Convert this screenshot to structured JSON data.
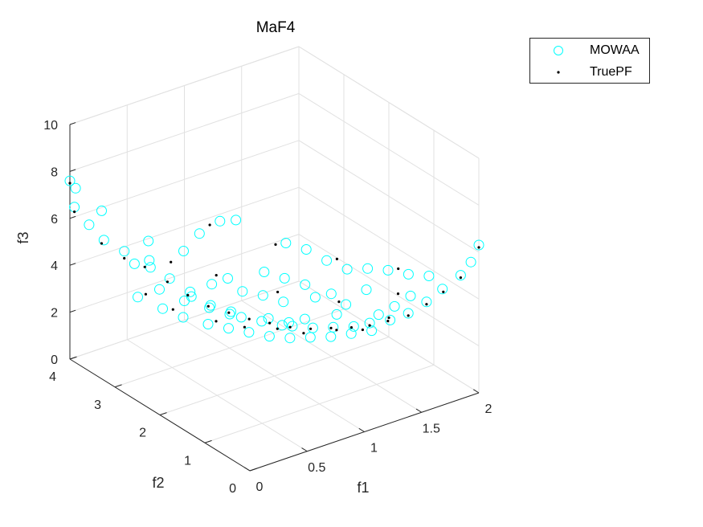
{
  "chart_data": {
    "type": "scatter",
    "title": "MaF4",
    "xlabel": "f1",
    "ylabel": "f2",
    "zlabel": "f3",
    "xlim": [
      0,
      2
    ],
    "ylim": [
      0,
      4
    ],
    "zlim": [
      0,
      10
    ],
    "x_ticks": [
      "0",
      "0.5",
      "1",
      "1.5",
      "2"
    ],
    "y_ticks": [
      "0",
      "1",
      "2",
      "3",
      "4"
    ],
    "z_ticks": [
      "0",
      "2",
      "4",
      "6",
      "8",
      "10"
    ],
    "grid": true,
    "legend_placement": "outside top-right",
    "colors": {
      "mowaa": "#00ffff",
      "truepf": "#000000",
      "axis": "#262626",
      "grid": "#e1e1e1"
    },
    "series": [
      {
        "name": "MOWAA",
        "marker": "circle",
        "points": [
          [
            0.0,
            4.0,
            7.6
          ],
          [
            0.05,
            4.0,
            7.2
          ],
          [
            0.0,
            3.9,
            6.6
          ],
          [
            0.12,
            3.6,
            6.6
          ],
          [
            0.05,
            3.7,
            6.0
          ],
          [
            0.1,
            3.5,
            5.5
          ],
          [
            0.2,
            3.3,
            5.1
          ],
          [
            0.3,
            3.0,
            4.9
          ],
          [
            0.35,
            3.1,
            4.4
          ],
          [
            0.4,
            2.8,
            4.2
          ],
          [
            0.25,
            3.2,
            4.6
          ],
          [
            0.5,
            2.6,
            3.7
          ],
          [
            0.55,
            2.7,
            3.3
          ],
          [
            0.6,
            2.4,
            3.2
          ],
          [
            0.7,
            2.2,
            3.0
          ],
          [
            0.75,
            2.1,
            2.8
          ],
          [
            0.85,
            1.9,
            2.7
          ],
          [
            0.95,
            1.7,
            2.6
          ],
          [
            1.0,
            1.6,
            2.6
          ],
          [
            1.1,
            1.4,
            2.6
          ],
          [
            1.2,
            1.2,
            2.7
          ],
          [
            1.3,
            1.0,
            2.8
          ],
          [
            1.4,
            0.9,
            2.9
          ],
          [
            1.5,
            0.7,
            3.1
          ],
          [
            1.6,
            0.55,
            3.4
          ],
          [
            1.7,
            0.4,
            3.9
          ],
          [
            1.8,
            0.3,
            4.4
          ],
          [
            1.9,
            0.15,
            5.0
          ],
          [
            1.95,
            0.05,
            5.6
          ],
          [
            2.0,
            0.0,
            6.3
          ],
          [
            0.8,
            2.7,
            6.1
          ],
          [
            0.9,
            2.6,
            6.1
          ],
          [
            0.7,
            2.9,
            5.5
          ],
          [
            0.6,
            3.0,
            4.8
          ],
          [
            0.45,
            3.4,
            5.0
          ],
          [
            1.1,
            2.0,
            5.5
          ],
          [
            1.2,
            1.8,
            5.3
          ],
          [
            1.3,
            1.6,
            4.9
          ],
          [
            1.4,
            1.4,
            4.6
          ],
          [
            1.5,
            1.2,
            4.7
          ],
          [
            1.6,
            1.0,
            4.7
          ],
          [
            1.7,
            0.8,
            4.6
          ],
          [
            1.8,
            0.6,
            4.6
          ],
          [
            1.6,
            0.5,
            4.2
          ],
          [
            1.5,
            0.6,
            3.8
          ],
          [
            1.4,
            0.7,
            3.5
          ],
          [
            0.9,
            2.0,
            3.6
          ],
          [
            0.8,
            2.2,
            3.7
          ],
          [
            1.0,
            1.8,
            3.4
          ],
          [
            1.2,
            1.6,
            3.5
          ],
          [
            1.3,
            1.5,
            3.6
          ],
          [
            1.35,
            1.3,
            3.3
          ],
          [
            1.25,
            1.25,
            3.1
          ],
          [
            1.05,
            1.45,
            3.0
          ],
          [
            0.95,
            1.55,
            2.9
          ],
          [
            0.85,
            1.75,
            3.0
          ],
          [
            0.65,
            2.1,
            3.1
          ],
          [
            0.55,
            2.3,
            3.3
          ],
          [
            0.45,
            2.6,
            3.4
          ],
          [
            0.35,
            2.9,
            3.7
          ],
          [
            0.4,
            2.5,
            2.9
          ],
          [
            0.5,
            2.2,
            2.8
          ],
          [
            0.6,
            2.0,
            2.7
          ],
          [
            0.7,
            1.8,
            2.6
          ],
          [
            0.8,
            1.6,
            2.5
          ],
          [
            0.9,
            1.4,
            2.5
          ],
          [
            1.0,
            1.2,
            2.6
          ],
          [
            1.1,
            1.0,
            2.7
          ],
          [
            1.2,
            0.8,
            2.9
          ],
          [
            1.3,
            0.6,
            3.1
          ],
          [
            0.3,
            2.7,
            3.2
          ],
          [
            0.2,
            3.0,
            3.5
          ],
          [
            0.65,
            2.5,
            3.9
          ],
          [
            0.75,
            2.4,
            4.1
          ],
          [
            1.15,
            1.7,
            4.0
          ],
          [
            1.05,
            1.9,
            4.2
          ],
          [
            0.95,
            2.1,
            4.4
          ],
          [
            1.45,
            1.1,
            4.0
          ]
        ]
      },
      {
        "name": "TruePF",
        "marker": "dot",
        "points": [
          [
            0.0,
            4.0,
            7.5
          ],
          [
            0.0,
            3.9,
            6.4
          ],
          [
            0.1,
            3.55,
            5.3
          ],
          [
            0.2,
            3.3,
            4.8
          ],
          [
            0.3,
            3.1,
            4.5
          ],
          [
            0.4,
            2.85,
            4.0
          ],
          [
            0.5,
            2.65,
            3.5
          ],
          [
            0.6,
            2.45,
            3.1
          ],
          [
            0.7,
            2.25,
            2.9
          ],
          [
            0.8,
            2.05,
            2.7
          ],
          [
            0.9,
            1.85,
            2.6
          ],
          [
            1.0,
            1.65,
            2.5
          ],
          [
            1.1,
            1.45,
            2.5
          ],
          [
            1.2,
            1.25,
            2.6
          ],
          [
            1.3,
            1.05,
            2.7
          ],
          [
            1.4,
            0.9,
            2.8
          ],
          [
            1.5,
            0.75,
            3.0
          ],
          [
            1.6,
            0.55,
            3.3
          ],
          [
            1.7,
            0.4,
            3.8
          ],
          [
            1.8,
            0.28,
            4.3
          ],
          [
            1.9,
            0.15,
            4.9
          ],
          [
            2.0,
            0.0,
            6.2
          ],
          [
            0.75,
            2.8,
            5.9
          ],
          [
            1.05,
            2.1,
            5.4
          ],
          [
            1.35,
            1.5,
            5.0
          ],
          [
            1.65,
            0.9,
            4.8
          ],
          [
            1.55,
            0.65,
            4.2
          ],
          [
            1.25,
            1.2,
            3.7
          ],
          [
            0.95,
            1.8,
            3.9
          ],
          [
            0.65,
            2.4,
            4.4
          ],
          [
            0.45,
            2.9,
            4.7
          ],
          [
            0.85,
            1.55,
            2.8
          ],
          [
            1.15,
            1.0,
            2.9
          ],
          [
            0.55,
            2.15,
            2.9
          ],
          [
            0.35,
            2.6,
            3.2
          ],
          [
            1.45,
            0.6,
            3.4
          ],
          [
            0.7,
            1.9,
            2.7
          ],
          [
            1.0,
            1.35,
            2.6
          ],
          [
            1.3,
            0.8,
            2.9
          ],
          [
            0.25,
            2.95,
            3.6
          ]
        ]
      }
    ]
  }
}
